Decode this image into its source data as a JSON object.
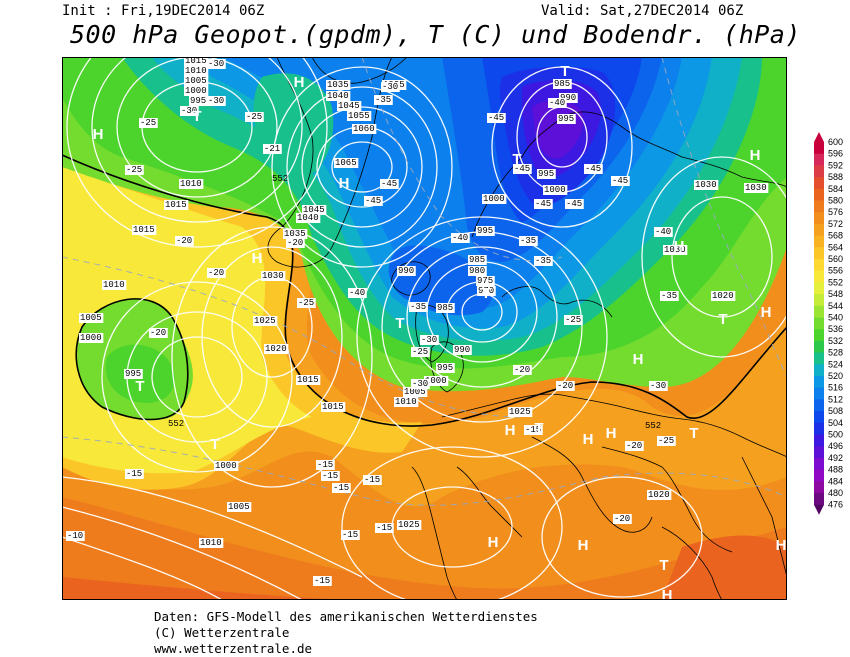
{
  "header": {
    "init": "Init : Fri,19DEC2014 06Z",
    "valid": "Valid: Sat,27DEC2014 06Z",
    "title": "500 hPa Geopot.(gpdm), T (C) und Bodendr. (hPa)"
  },
  "footer": {
    "line1": "Daten: GFS-Modell des amerikanischen Wetterdienstes",
    "line2": "(C) Wetterzentrale",
    "line3": "www.wetterzentrale.de"
  },
  "legend": {
    "values": [
      "600",
      "596",
      "592",
      "588",
      "584",
      "580",
      "576",
      "572",
      "568",
      "564",
      "560",
      "556",
      "552",
      "548",
      "544",
      "540",
      "536",
      "532",
      "528",
      "524",
      "520",
      "516",
      "512",
      "508",
      "504",
      "500",
      "496",
      "492",
      "488",
      "484",
      "480",
      "476"
    ],
    "colors": [
      "#c8003c",
      "#d6285a",
      "#dc3c46",
      "#e44e2c",
      "#ea6420",
      "#ee7c1c",
      "#f28e1c",
      "#f5a01e",
      "#f8b222",
      "#fac628",
      "#fcd830",
      "#f8e83a",
      "#e4f03c",
      "#c4ec38",
      "#9ce432",
      "#74dc2e",
      "#4cd42c",
      "#2cc84c",
      "#18c08c",
      "#10b0c8",
      "#0c98e4",
      "#0c80ec",
      "#0c64ec",
      "#0c48ec",
      "#1c30e8",
      "#3c18e0",
      "#5c10d8",
      "#7c0cd0",
      "#9008c4",
      "#8c08a0",
      "#6c0880",
      "#500460"
    ]
  },
  "map": {
    "pressure_labels": [
      {
        "t": "1015",
        "p": [
          185,
          63
        ]
      },
      {
        "t": "1010",
        "p": [
          185,
          73
        ]
      },
      {
        "t": "1005",
        "p": [
          185,
          83
        ]
      },
      {
        "t": "1000",
        "p": [
          185,
          93
        ]
      },
      {
        "t": "995",
        "p": [
          190,
          103
        ]
      },
      {
        "t": "1035",
        "p": [
          327,
          87
        ]
      },
      {
        "t": "1040",
        "p": [
          327,
          98
        ]
      },
      {
        "t": "1025",
        "p": [
          383,
          87
        ]
      },
      {
        "t": "1045",
        "p": [
          338,
          108
        ]
      },
      {
        "t": "1055",
        "p": [
          348,
          118
        ]
      },
      {
        "t": "1060",
        "p": [
          353,
          131
        ]
      },
      {
        "t": "1065",
        "p": [
          335,
          165
        ]
      },
      {
        "t": "1045",
        "p": [
          303,
          212
        ]
      },
      {
        "t": "1040",
        "p": [
          297,
          220
        ]
      },
      {
        "t": "1035",
        "p": [
          284,
          236
        ]
      },
      {
        "t": "1010",
        "p": [
          180,
          186
        ]
      },
      {
        "t": "1015",
        "p": [
          165,
          207
        ]
      },
      {
        "t": "1015",
        "p": [
          133,
          232
        ]
      },
      {
        "t": "1010",
        "p": [
          103,
          287
        ]
      },
      {
        "t": "1005",
        "p": [
          80,
          320
        ]
      },
      {
        "t": "1000",
        "p": [
          80,
          340
        ]
      },
      {
        "t": "995",
        "p": [
          125,
          376
        ]
      },
      {
        "t": "1030",
        "p": [
          262,
          278
        ]
      },
      {
        "t": "1025",
        "p": [
          254,
          323
        ]
      },
      {
        "t": "1020",
        "p": [
          265,
          351
        ]
      },
      {
        "t": "1015",
        "p": [
          297,
          382
        ]
      },
      {
        "t": "1015",
        "p": [
          322,
          409
        ]
      },
      {
        "t": "1000",
        "p": [
          215,
          468
        ]
      },
      {
        "t": "1005",
        "p": [
          228,
          509
        ]
      },
      {
        "t": "1010",
        "p": [
          200,
          545
        ]
      },
      {
        "t": "990",
        "p": [
          398,
          273
        ]
      },
      {
        "t": "985",
        "p": [
          437,
          310
        ]
      },
      {
        "t": "985",
        "p": [
          469,
          262
        ]
      },
      {
        "t": "980",
        "p": [
          469,
          273
        ]
      },
      {
        "t": "975",
        "p": [
          477,
          283
        ]
      },
      {
        "t": "970",
        "p": [
          478,
          293
        ]
      },
      {
        "t": "990",
        "p": [
          454,
          352
        ]
      },
      {
        "t": "995",
        "p": [
          437,
          370
        ]
      },
      {
        "t": "1000",
        "p": [
          425,
          383
        ]
      },
      {
        "t": "1005",
        "p": [
          404,
          394
        ]
      },
      {
        "t": "1010",
        "p": [
          395,
          404
        ]
      },
      {
        "t": "1000",
        "p": [
          483,
          201
        ]
      },
      {
        "t": "995",
        "p": [
          477,
          233
        ]
      },
      {
        "t": "995",
        "p": [
          538,
          176
        ]
      },
      {
        "t": "1000",
        "p": [
          544,
          192
        ]
      },
      {
        "t": "985",
        "p": [
          554,
          86
        ]
      },
      {
        "t": "990",
        "p": [
          560,
          100
        ]
      },
      {
        "t": "995",
        "p": [
          558,
          121
        ]
      },
      {
        "t": "1030",
        "p": [
          695,
          187
        ]
      },
      {
        "t": "1030",
        "p": [
          745,
          190
        ]
      },
      {
        "t": "1030",
        "p": [
          664,
          252
        ]
      },
      {
        "t": "1020",
        "p": [
          712,
          298
        ]
      },
      {
        "t": "1025",
        "p": [
          509,
          414
        ]
      },
      {
        "t": "1020",
        "p": [
          648,
          497
        ]
      },
      {
        "t": "1025",
        "p": [
          398,
          527
        ]
      }
    ],
    "temp_labels": [
      {
        "t": "-30",
        "p": [
          208,
          66
        ]
      },
      {
        "t": "-30",
        "p": [
          181,
          113
        ]
      },
      {
        "t": "-30",
        "p": [
          208,
          103
        ]
      },
      {
        "t": "-25",
        "p": [
          140,
          125
        ]
      },
      {
        "t": "-25",
        "p": [
          126,
          172
        ]
      },
      {
        "t": "-25",
        "p": [
          246,
          119
        ]
      },
      {
        "t": "-21",
        "p": [
          264,
          151
        ]
      },
      {
        "t": "-20",
        "p": [
          176,
          243
        ]
      },
      {
        "t": "-20",
        "p": [
          208,
          275
        ]
      },
      {
        "t": "-20",
        "p": [
          287,
          245
        ]
      },
      {
        "t": "-20",
        "p": [
          150,
          335
        ]
      },
      {
        "t": "-30",
        "p": [
          382,
          89
        ]
      },
      {
        "t": "-35",
        "p": [
          375,
          102
        ]
      },
      {
        "t": "-45",
        "p": [
          381,
          186
        ]
      },
      {
        "t": "-45",
        "p": [
          365,
          203
        ]
      },
      {
        "t": "-45",
        "p": [
          488,
          120
        ]
      },
      {
        "t": "-45",
        "p": [
          514,
          171
        ]
      },
      {
        "t": "-40",
        "p": [
          549,
          105
        ]
      },
      {
        "t": "-45",
        "p": [
          585,
          171
        ]
      },
      {
        "t": "-45",
        "p": [
          612,
          183
        ]
      },
      {
        "t": "-45",
        "p": [
          535,
          206
        ]
      },
      {
        "t": "-45",
        "p": [
          566,
          206
        ]
      },
      {
        "t": "-40",
        "p": [
          452,
          240
        ]
      },
      {
        "t": "-40",
        "p": [
          349,
          295
        ]
      },
      {
        "t": "-35",
        "p": [
          520,
          243
        ]
      },
      {
        "t": "-35",
        "p": [
          535,
          263
        ]
      },
      {
        "t": "-35",
        "p": [
          410,
          309
        ]
      },
      {
        "t": "-30",
        "p": [
          421,
          342
        ]
      },
      {
        "t": "-25",
        "p": [
          412,
          354
        ]
      },
      {
        "t": "-25",
        "p": [
          298,
          305
        ]
      },
      {
        "t": "-25",
        "p": [
          565,
          322
        ]
      },
      {
        "t": "-30",
        "p": [
          412,
          386
        ]
      },
      {
        "t": "-20",
        "p": [
          514,
          372
        ]
      },
      {
        "t": "-20",
        "p": [
          557,
          388
        ]
      },
      {
        "t": "-40",
        "p": [
          655,
          234
        ]
      },
      {
        "t": "-35",
        "p": [
          661,
          298
        ]
      },
      {
        "t": "-30",
        "p": [
          650,
          388
        ]
      },
      {
        "t": "-20",
        "p": [
          626,
          448
        ]
      },
      {
        "t": "-25",
        "p": [
          658,
          443
        ]
      },
      {
        "t": "-20",
        "p": [
          614,
          521
        ]
      },
      {
        "t": "-15",
        "p": [
          126,
          476
        ]
      },
      {
        "t": "-15",
        "p": [
          317,
          467
        ]
      },
      {
        "t": "-15",
        "p": [
          322,
          478
        ]
      },
      {
        "t": "-15",
        "p": [
          333,
          490
        ]
      },
      {
        "t": "-15",
        "p": [
          364,
          482
        ]
      },
      {
        "t": "-15",
        "p": [
          342,
          537
        ]
      },
      {
        "t": "-15",
        "p": [
          376,
          530
        ]
      },
      {
        "t": "-15",
        "p": [
          314,
          583
        ]
      },
      {
        "t": "-10",
        "p": [
          67,
          538
        ]
      },
      {
        "t": "-15",
        "p": [
          525,
          432
        ]
      }
    ],
    "geo_labels": [
      {
        "t": "552",
        "p": [
          272,
          181
        ]
      },
      {
        "t": "552",
        "p": [
          168,
          426
        ]
      },
      {
        "t": "552",
        "p": [
          645,
          428
        ]
      }
    ],
    "highs": [
      {
        "t": "H",
        "p": [
          98,
          133
        ]
      },
      {
        "t": "H",
        "p": [
          299,
          81
        ]
      },
      {
        "t": "H",
        "p": [
          344,
          182
        ]
      },
      {
        "t": "H",
        "p": [
          257,
          257
        ]
      },
      {
        "t": "H",
        "p": [
          755,
          154
        ]
      },
      {
        "t": "H",
        "p": [
          679,
          245
        ]
      },
      {
        "t": "H",
        "p": [
          766,
          311
        ]
      },
      {
        "t": "H",
        "p": [
          638,
          358
        ]
      },
      {
        "t": "H",
        "p": [
          510,
          429
        ]
      },
      {
        "t": "H",
        "p": [
          588,
          438
        ]
      },
      {
        "t": "H",
        "p": [
          611,
          432
        ]
      },
      {
        "t": "H",
        "p": [
          493,
          541
        ]
      },
      {
        "t": "H",
        "p": [
          583,
          544
        ]
      },
      {
        "t": "H",
        "p": [
          781,
          544
        ]
      },
      {
        "t": "H",
        "p": [
          667,
          594
        ]
      }
    ],
    "lows": [
      {
        "t": "T",
        "p": [
          197,
          115
        ]
      },
      {
        "t": "T",
        "p": [
          565,
          70
        ]
      },
      {
        "t": "T",
        "p": [
          517,
          158
        ]
      },
      {
        "t": "T",
        "p": [
          400,
          322
        ]
      },
      {
        "t": "T",
        "p": [
          486,
          292
        ]
      },
      {
        "t": "T",
        "p": [
          140,
          385
        ]
      },
      {
        "t": "T",
        "p": [
          215,
          443
        ]
      },
      {
        "t": "T",
        "p": [
          723,
          318
        ]
      },
      {
        "t": "T",
        "p": [
          539,
          427
        ]
      },
      {
        "t": "T",
        "p": [
          694,
          432
        ]
      },
      {
        "t": "T",
        "p": [
          664,
          564
        ]
      }
    ]
  }
}
